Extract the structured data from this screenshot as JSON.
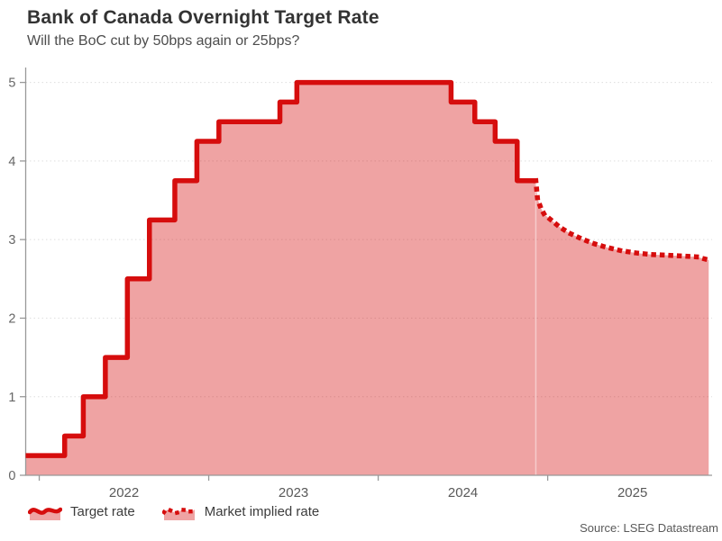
{
  "header": {
    "title": "Bank of Canada Overnight Target Rate",
    "subtitle": "Will the BoC cut by 50bps again or 25bps?"
  },
  "source": "Source: LSEG Datastream",
  "legend": [
    {
      "label": "Target rate",
      "style": "solid"
    },
    {
      "label": "Market implied rate",
      "style": "dotted"
    }
  ],
  "colors": {
    "line_red": "#d60d0d",
    "area_fill": "rgba(214,13,13,0.38)",
    "grid": "#dedede",
    "axis": "#999999",
    "y_tick_label": "#666666",
    "x_tick_label": "#595959",
    "title": "#333333",
    "subtitle": "#4d4d4d",
    "source": "#595959",
    "background": "#ffffff"
  },
  "chart_data": {
    "type": "area",
    "title": "Bank of Canada Overnight Target Rate",
    "subtitle": "Will the BoC cut by 50bps again or 25bps?",
    "xlabel": "",
    "ylabel": "",
    "xlim": [
      2021.92,
      2025.97
    ],
    "ylim": [
      0,
      5.19
    ],
    "y_ticks": [
      0,
      1,
      2,
      3,
      4,
      5
    ],
    "x_ticks": [
      2022,
      2023,
      2024,
      2025
    ],
    "x_tick_labels": [
      "2022",
      "2023",
      "2024",
      "2025"
    ],
    "grid": "horizontal-dotted",
    "legend_position": "bottom-left",
    "series": [
      {
        "name": "Target rate",
        "type": "step",
        "style": "solid",
        "points": [
          [
            2021.92,
            0.25
          ],
          [
            2022.15,
            0.5
          ],
          [
            2022.26,
            1.0
          ],
          [
            2022.39,
            1.5
          ],
          [
            2022.52,
            2.5
          ],
          [
            2022.65,
            3.25
          ],
          [
            2022.8,
            3.75
          ],
          [
            2022.93,
            4.25
          ],
          [
            2023.06,
            4.5
          ],
          [
            2023.42,
            4.75
          ],
          [
            2023.52,
            5.0
          ],
          [
            2024.43,
            4.75
          ],
          [
            2024.57,
            4.5
          ],
          [
            2024.69,
            4.25
          ],
          [
            2024.82,
            3.75
          ],
          [
            2024.93,
            3.75
          ]
        ]
      },
      {
        "name": "Market implied rate",
        "type": "line",
        "style": "dotted",
        "points": [
          [
            2024.93,
            3.75
          ],
          [
            2024.94,
            3.52
          ],
          [
            2024.96,
            3.4
          ],
          [
            2024.98,
            3.32
          ],
          [
            2025.02,
            3.25
          ],
          [
            2025.07,
            3.16
          ],
          [
            2025.13,
            3.08
          ],
          [
            2025.2,
            3.01
          ],
          [
            2025.27,
            2.95
          ],
          [
            2025.35,
            2.9
          ],
          [
            2025.43,
            2.86
          ],
          [
            2025.52,
            2.83
          ],
          [
            2025.61,
            2.81
          ],
          [
            2025.71,
            2.8
          ],
          [
            2025.8,
            2.79
          ],
          [
            2025.88,
            2.78
          ],
          [
            2025.95,
            2.74
          ]
        ]
      }
    ]
  }
}
